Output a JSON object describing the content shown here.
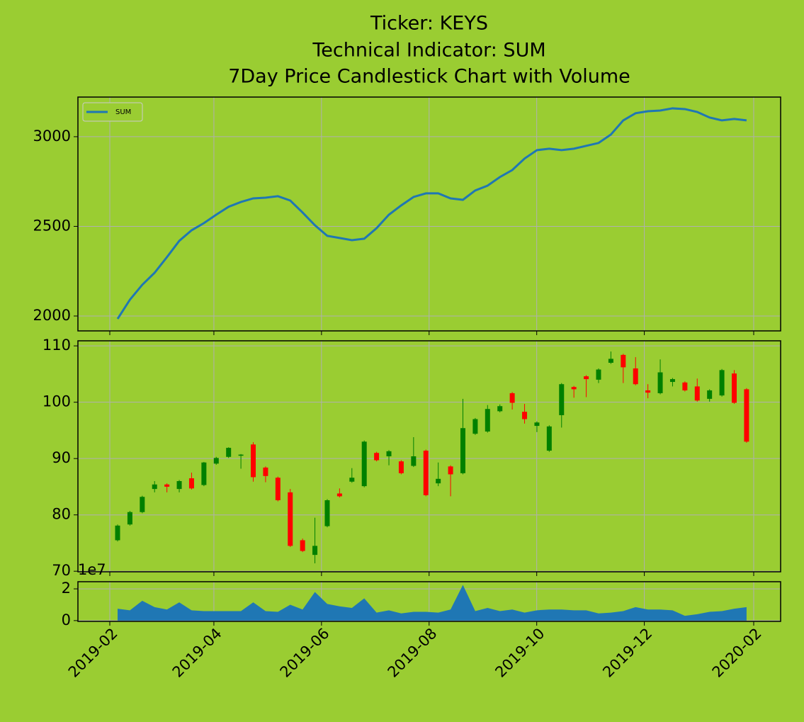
{
  "title": [
    "Ticker: KEYS",
    "Technical Indicator: SUM",
    "7Day Price Candlestick Chart with Volume"
  ],
  "xticks": [
    "2019-02",
    "2019-04",
    "2019-06",
    "2019-08",
    "2019-10",
    "2019-12",
    "2020-02"
  ],
  "chart_data": [
    {
      "type": "line",
      "grid": true,
      "legend": "upper left",
      "ylim": [
        1917,
        3221
      ],
      "yticks": [
        2000,
        2500,
        3000
      ],
      "series": [
        {
          "name": "SUM",
          "color": "#1f77b4",
          "values": [
            1984,
            2091,
            2174,
            2241,
            2328,
            2419,
            2478,
            2518,
            2565,
            2609,
            2636,
            2656,
            2660,
            2668,
            2644,
            2577,
            2506,
            2447,
            2435,
            2423,
            2431,
            2490,
            2565,
            2617,
            2664,
            2684,
            2684,
            2656,
            2648,
            2700,
            2727,
            2775,
            2814,
            2878,
            2925,
            2933,
            2925,
            2933,
            2949,
            2965,
            3012,
            3091,
            3131,
            3142,
            3146,
            3158,
            3154,
            3138,
            3107,
            3091,
            3099,
            3091
          ]
        }
      ]
    },
    {
      "type": "candlestick",
      "grid": true,
      "up_color": "green",
      "down_color": "red",
      "ylim": [
        69.9,
        110.9
      ],
      "yticks": [
        70,
        80,
        90,
        100,
        110
      ],
      "open": [
        75.5,
        78.3,
        80.5,
        84.6,
        85.4,
        84.6,
        86.5,
        85.3,
        89.1,
        90.3,
        90.5,
        92.5,
        88.4,
        86.6,
        84.0,
        75.5,
        72.9,
        78.0,
        83.8,
        85.9,
        85.1,
        91.0,
        90.4,
        89.5,
        88.7,
        91.4,
        85.6,
        88.6,
        87.4,
        94.4,
        94.8,
        98.4,
        101.6,
        98.3,
        95.8,
        91.4,
        97.7,
        102.7,
        104.6,
        104.0,
        107.0,
        108.4,
        106.0,
        102.1,
        101.6,
        103.6,
        103.5,
        102.8,
        100.6,
        101.2,
        105.1,
        102.3
      ],
      "high": [
        78.3,
        80.7,
        83.4,
        86.0,
        85.6,
        86.2,
        87.5,
        89.4,
        90.3,
        92.0,
        90.8,
        92.9,
        88.6,
        86.8,
        84.6,
        75.8,
        79.5,
        82.8,
        84.7,
        88.3,
        93.2,
        91.2,
        91.5,
        89.7,
        93.8,
        91.6,
        89.3,
        88.8,
        100.6,
        97.2,
        99.5,
        99.6,
        101.8,
        99.7,
        96.6,
        95.9,
        103.4,
        102.9,
        104.8,
        106.0,
        109.0,
        108.6,
        108.0,
        103.2,
        107.6,
        104.3,
        103.7,
        104.2,
        102.3,
        105.9,
        105.7,
        102.5
      ],
      "low": [
        75.3,
        78.1,
        80.3,
        84.0,
        84.0,
        84.0,
        84.5,
        85.1,
        88.9,
        90.1,
        88.2,
        85.9,
        85.8,
        82.4,
        74.3,
        73.4,
        71.4,
        77.8,
        83.1,
        85.7,
        84.9,
        89.5,
        88.8,
        87.2,
        88.5,
        83.3,
        85.1,
        83.3,
        87.2,
        94.2,
        94.6,
        98.2,
        98.7,
        96.2,
        94.7,
        91.2,
        95.5,
        100.8,
        100.9,
        103.4,
        106.8,
        103.4,
        103.0,
        100.7,
        101.4,
        102.8,
        101.9,
        100.1,
        100.1,
        101.0,
        99.7,
        92.8
      ],
      "close": [
        78.1,
        80.5,
        83.2,
        85.4,
        85.0,
        86.0,
        84.7,
        89.3,
        90.1,
        91.9,
        90.7,
        86.7,
        86.9,
        82.6,
        74.5,
        73.6,
        74.5,
        82.6,
        83.3,
        86.6,
        93.0,
        89.7,
        91.3,
        87.4,
        90.4,
        83.5,
        86.4,
        87.2,
        95.4,
        97.0,
        98.8,
        99.3,
        99.9,
        97.0,
        96.4,
        95.7,
        103.2,
        102.3,
        104.1,
        105.8,
        107.7,
        106.2,
        103.2,
        101.7,
        105.3,
        104.1,
        102.1,
        100.3,
        102.1,
        105.7,
        99.9,
        93.0
      ]
    },
    {
      "type": "area",
      "grid": true,
      "color": "#1f77b4",
      "y_offset_text": "1e7",
      "ylim": [
        -0.05,
        2.45
      ],
      "yticks": [
        0,
        2
      ],
      "values": [
        0.75,
        0.65,
        1.25,
        0.85,
        0.7,
        1.15,
        0.65,
        0.6,
        0.6,
        0.6,
        0.6,
        1.15,
        0.6,
        0.55,
        1.0,
        0.7,
        1.8,
        1.05,
        0.9,
        0.8,
        1.4,
        0.5,
        0.65,
        0.45,
        0.55,
        0.55,
        0.5,
        0.7,
        2.25,
        0.6,
        0.8,
        0.6,
        0.7,
        0.5,
        0.65,
        0.7,
        0.7,
        0.65,
        0.65,
        0.45,
        0.5,
        0.6,
        0.85,
        0.7,
        0.7,
        0.65,
        0.3,
        0.4,
        0.55,
        0.6,
        0.75,
        0.85
      ]
    }
  ]
}
